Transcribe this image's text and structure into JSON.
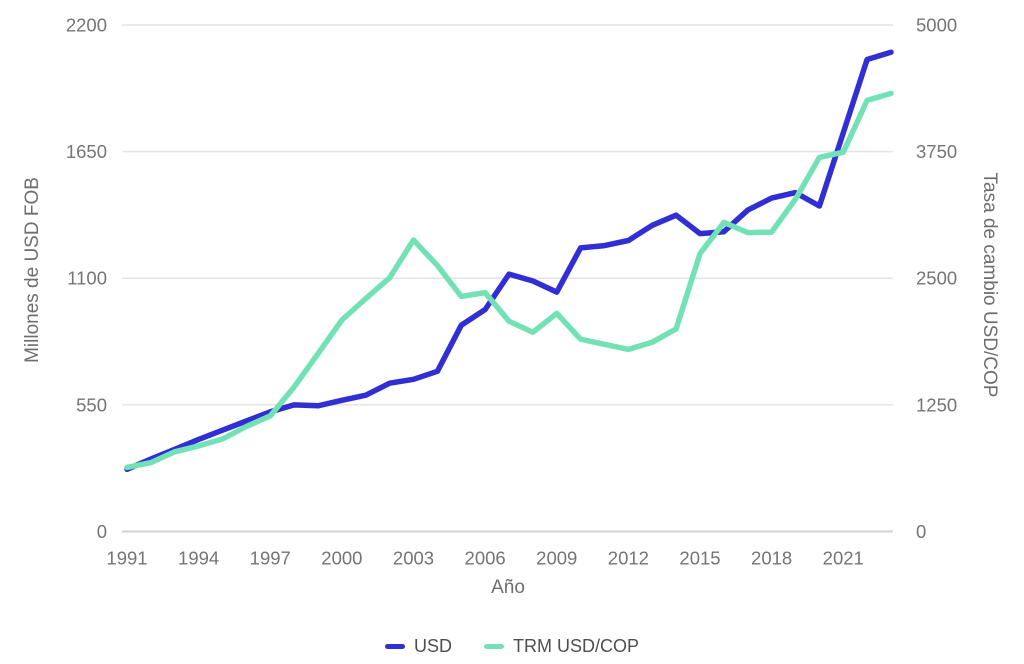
{
  "chart_data": {
    "type": "line",
    "title": "",
    "xlabel": "Año",
    "x": [
      1991,
      1992,
      1993,
      1994,
      1995,
      1996,
      1997,
      1998,
      1999,
      2000,
      2001,
      2002,
      2003,
      2004,
      2005,
      2006,
      2007,
      2008,
      2009,
      2010,
      2011,
      2012,
      2013,
      2014,
      2015,
      2016,
      2017,
      2018,
      2019,
      2020,
      2021,
      2022,
      2023
    ],
    "x_ticks": [
      1991,
      1994,
      1997,
      2000,
      2003,
      2006,
      2009,
      2012,
      2015,
      2018,
      2021
    ],
    "axes": {
      "left": {
        "label": "Millones de USD FOB",
        "min": 0,
        "max": 2200,
        "ticks": [
          0,
          550,
          1100,
          1650,
          2200
        ]
      },
      "right": {
        "label": "Tasa de cambio USD/COP",
        "min": 0,
        "max": 5000,
        "ticks": [
          0,
          1250,
          2500,
          3750,
          5000
        ]
      }
    },
    "series": [
      {
        "name": "USD",
        "axis": "left",
        "color": "#312fd4",
        "values": [
          270,
          315,
          357,
          400,
          440,
          480,
          520,
          550,
          546,
          570,
          592,
          644,
          661,
          696,
          896,
          964,
          1118,
          1088,
          1040,
          1232,
          1242,
          1264,
          1330,
          1374,
          1294,
          1302,
          1396,
          1448,
          1472,
          1414,
          1732,
          2050,
          2082
        ]
      },
      {
        "name": "TRM USD/COP",
        "axis": "right",
        "color": "#72e2b6",
        "values": [
          633,
          680,
          787,
          845,
          913,
          1037,
          1141,
          1426,
          1756,
          2088,
          2300,
          2504,
          2878,
          2626,
          2321,
          2358,
          2076,
          1967,
          2153,
          1898,
          1848,
          1798,
          1869,
          2000,
          2743,
          3051,
          2951,
          2956,
          3281,
          3693,
          3744,
          4256,
          4325
        ]
      }
    ],
    "legend": {
      "position": "bottom",
      "entries": [
        "USD",
        "TRM USD/COP"
      ]
    },
    "grid": "horizontal"
  },
  "colors": {
    "background": "#ffffff",
    "tick_text": "#757575",
    "axis_title_text": "#6e6e6e",
    "legend_text": "#4f4f4f",
    "gridline": "#e4e4e4",
    "axis_line": "#d2d2d2"
  }
}
